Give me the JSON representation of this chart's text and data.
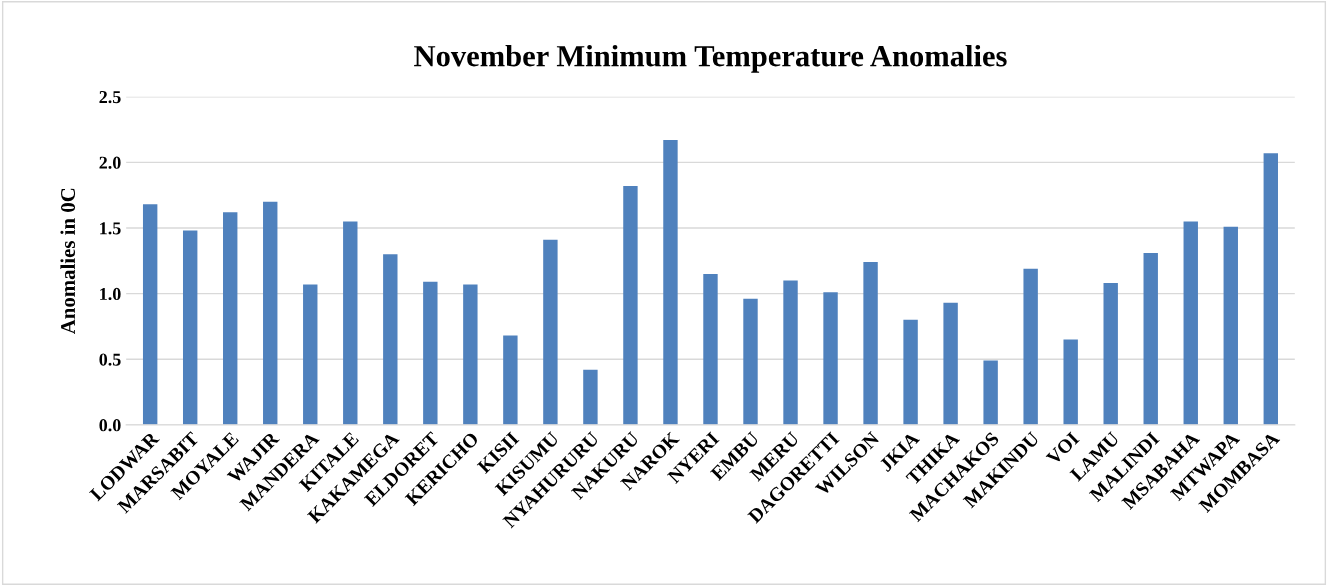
{
  "chart_data": {
    "type": "bar",
    "title": "November Minimum Temperature Anomalies",
    "ylabel": "Anomalies in 0C",
    "categories": [
      "LODWAR",
      "MARSABIT",
      "MOYALE",
      "WAJIR",
      "MANDERA",
      "KITALE",
      "KAKAMEGA",
      "ELDORET",
      "KERICHO",
      "KISII",
      "KISUMU",
      "NYAHURURU",
      "NAKURU",
      "NAROK",
      "NYERI",
      "EMBU",
      "MERU",
      "DAGORETTI",
      "WILSON",
      "JKIA",
      "THIKA",
      "MACHAKOS",
      "MAKINDU",
      "VOI",
      "LAMU",
      "MALINDI",
      "MSABAHA",
      "MTWAPA",
      "MOMBASA"
    ],
    "values": [
      1.68,
      1.48,
      1.62,
      1.7,
      1.07,
      1.55,
      1.3,
      1.09,
      1.07,
      0.68,
      1.41,
      0.42,
      1.82,
      2.17,
      1.15,
      0.96,
      1.1,
      1.01,
      1.24,
      0.8,
      0.93,
      0.49,
      1.19,
      0.65,
      1.08,
      1.31,
      1.55,
      1.51,
      2.07
    ],
    "color": "#4f81bd",
    "ylim": [
      0,
      2.5
    ],
    "yticks": [
      {
        "value": 0,
        "label": "0.0"
      },
      {
        "value": 0.5,
        "label": "0.5"
      },
      {
        "value": 1,
        "label": "1.0"
      },
      {
        "value": 1.5,
        "label": "1.5"
      },
      {
        "value": 2,
        "label": "2.0"
      },
      {
        "value": 2.5,
        "label": "2.5"
      }
    ],
    "grid": "y",
    "legend": false
  }
}
